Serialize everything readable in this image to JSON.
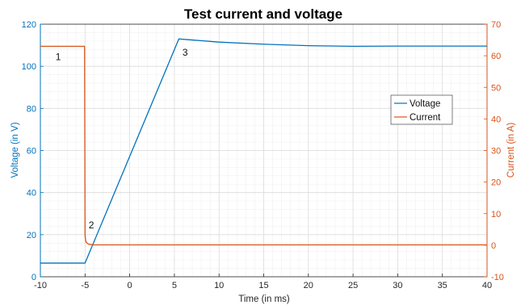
{
  "chart_data": {
    "type": "line",
    "title": "Test current and voltage",
    "xlabel": "Time (in ms)",
    "ylabel_left": "Voltage (in V)",
    "ylabel_right": "Current (in A)",
    "xlim": [
      -10,
      40
    ],
    "ylim_left": [
      0,
      120
    ],
    "ylim_right": [
      -10,
      70
    ],
    "x_ticks": [
      -10,
      -5,
      0,
      5,
      10,
      15,
      20,
      25,
      30,
      35,
      40
    ],
    "y_left_ticks": [
      0,
      20,
      40,
      60,
      80,
      100,
      120
    ],
    "y_right_ticks": [
      -10,
      0,
      10,
      20,
      30,
      40,
      50,
      60,
      70
    ],
    "grid": true,
    "legend_position": "right",
    "colors": {
      "voltage": "#0072BD",
      "current": "#D95319"
    },
    "series": [
      {
        "name": "Voltage",
        "axis": "left",
        "x": [
          -10,
          -5.3,
          -5,
          5.5,
          7,
          10,
          15,
          20,
          25,
          30,
          35,
          40
        ],
        "values": [
          6.5,
          6.5,
          6.5,
          113,
          112.5,
          111.5,
          110.5,
          109.8,
          109.5,
          109.6,
          109.6,
          109.6
        ]
      },
      {
        "name": "Current",
        "axis": "right",
        "x": [
          -10,
          -5.05,
          -5.0,
          -4.9,
          -4.6,
          -4.0,
          0,
          10,
          20,
          30,
          40
        ],
        "values": [
          63,
          63,
          3.0,
          1.0,
          0.3,
          0.1,
          0.1,
          0.1,
          0.1,
          0.1,
          0.1
        ]
      }
    ],
    "annotations": [
      {
        "text": "1",
        "x": -8,
        "y_left": 103
      },
      {
        "text": "2",
        "x": -4.3,
        "y_left": 23
      },
      {
        "text": "3",
        "x": 6.2,
        "y_left": 105
      }
    ]
  }
}
